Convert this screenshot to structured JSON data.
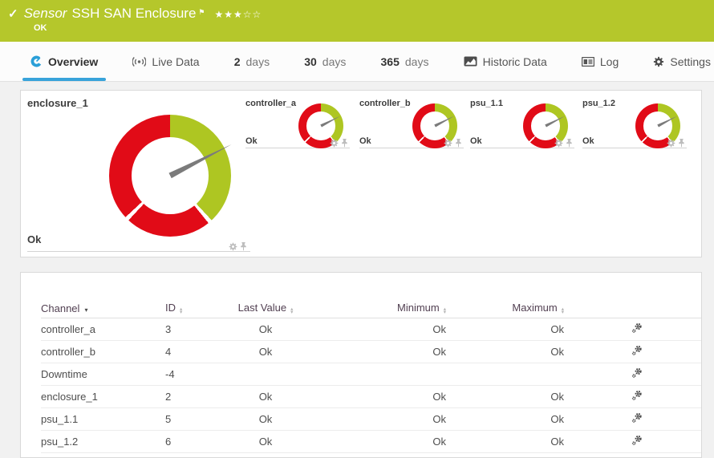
{
  "header": {
    "check_icon": "✓",
    "type_label": "Sensor",
    "title": "SSH SAN Enclosure",
    "flag_icon": "⚑",
    "rating": {
      "filled": 3,
      "total": 5
    },
    "status": "OK",
    "color": "#b5c72b"
  },
  "tabs": [
    {
      "label": "Overview",
      "icon": "gauge-icon",
      "active": true
    },
    {
      "label": "Live Data",
      "icon": "live-icon"
    },
    {
      "prefix": "2",
      "label": "days"
    },
    {
      "prefix": "30",
      "label": "days"
    },
    {
      "prefix": "365",
      "label": "days"
    },
    {
      "label": "Historic Data",
      "icon": "chart-icon"
    },
    {
      "label": "Log",
      "icon": "log-icon"
    },
    {
      "label": "Settings",
      "icon": "settings-gear-icon"
    }
  ],
  "gauges": {
    "colors": {
      "ok": "#aec622",
      "error": "#e10b17",
      "needle": "#7b7b7b"
    },
    "segments": [
      {
        "from": 0,
        "to": 137,
        "color": "ok"
      },
      {
        "from": 141,
        "to": 223,
        "color": "error"
      },
      {
        "from": 227,
        "to": 360,
        "color": "error"
      }
    ],
    "needle_deg": 63,
    "primary": {
      "name": "enclosure_1",
      "status": "Ok"
    },
    "secondary": [
      {
        "name": "controller_a",
        "status": "Ok"
      },
      {
        "name": "controller_b",
        "status": "Ok"
      },
      {
        "name": "psu_1.1",
        "status": "Ok"
      },
      {
        "name": "psu_1.2",
        "status": "Ok"
      }
    ]
  },
  "table": {
    "sorted_by": "Channel",
    "columns": [
      {
        "key": "channel",
        "label": "Channel",
        "align": "left",
        "sorted": true
      },
      {
        "key": "id",
        "label": "ID",
        "align": "left"
      },
      {
        "key": "last",
        "label": "Last Value",
        "align": "center"
      },
      {
        "key": "min",
        "label": "Minimum",
        "align": "right"
      },
      {
        "key": "max",
        "label": "Maximum",
        "align": "right"
      }
    ],
    "rows": [
      {
        "channel": "controller_a",
        "id": "3",
        "last": "Ok",
        "min": "Ok",
        "max": "Ok"
      },
      {
        "channel": "controller_b",
        "id": "4",
        "last": "Ok",
        "min": "Ok",
        "max": "Ok"
      },
      {
        "channel": "Downtime",
        "id": "-4",
        "last": "",
        "min": "",
        "max": ""
      },
      {
        "channel": "enclosure_1",
        "id": "2",
        "last": "Ok",
        "min": "Ok",
        "max": "Ok"
      },
      {
        "channel": "psu_1.1",
        "id": "5",
        "last": "Ok",
        "min": "Ok",
        "max": "Ok"
      },
      {
        "channel": "psu_1.2",
        "id": "6",
        "last": "Ok",
        "min": "Ok",
        "max": "Ok"
      }
    ]
  }
}
